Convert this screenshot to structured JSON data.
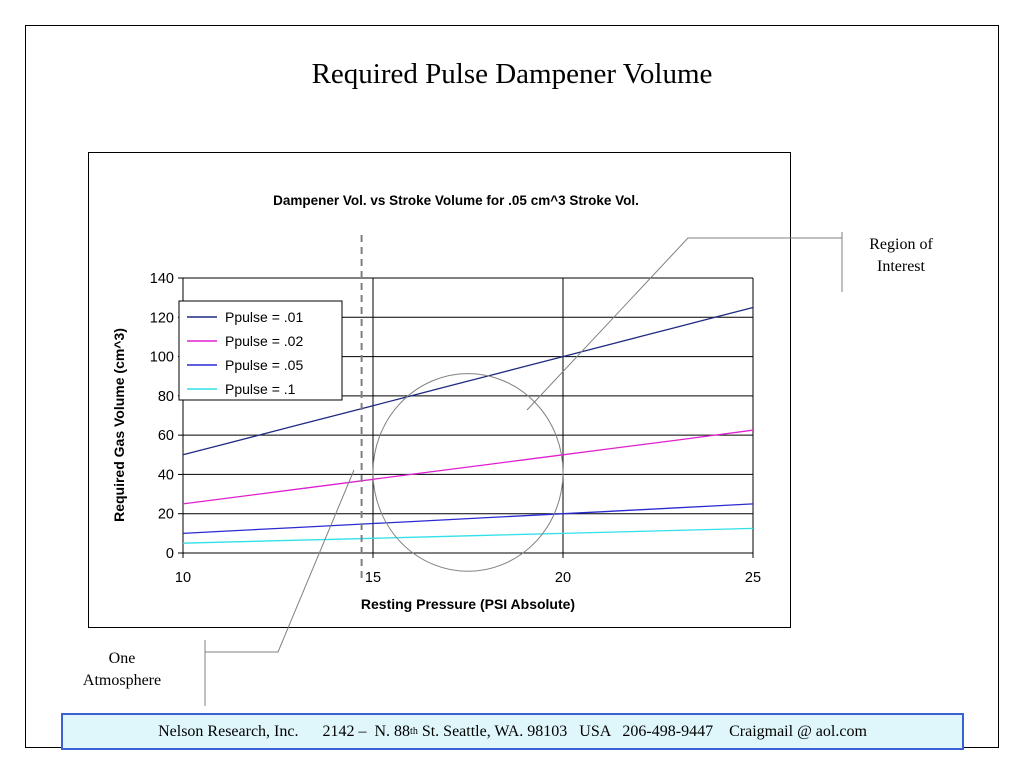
{
  "slide": {
    "title": "Required Pulse Dampener Volume",
    "callouts": {
      "region_line1": "Region of",
      "region_line2": "Interest",
      "atm_line1": "One",
      "atm_line2": "Atmosphere"
    },
    "footer": {
      "company": "Nelson Research, Inc.",
      "address_a": "2142 –  N. 88",
      "address_sup": "th",
      "address_b": " St. Seattle, WA. 98103   USA   206-498-9447    Craigmail @ aol.com"
    }
  },
  "colors": {
    "frame": "#000000",
    "grid": "#000000",
    "footer_bg": "#dff7fb",
    "footer_border": "#3a62d6",
    "callout_line": "#808080",
    "dashed_marker": "#808080"
  },
  "chart_data": {
    "type": "line",
    "title": "Dampener Vol. vs Stroke Volume for .05 cm^3 Stroke Vol.",
    "xlabel": "Resting Pressure (PSI Absolute)",
    "ylabel": "Required Gas Volume (cm^3)",
    "xlim": [
      10,
      25
    ],
    "ylim": [
      0,
      140
    ],
    "xticks": [
      10,
      15,
      20,
      25
    ],
    "yticks": [
      0,
      20,
      40,
      60,
      80,
      100,
      120,
      140
    ],
    "x": [
      10,
      11,
      12,
      13,
      14,
      15,
      16,
      17,
      18,
      19,
      20,
      21,
      22,
      23,
      24,
      25
    ],
    "series": [
      {
        "name": "Ppulse = .01",
        "color": "#1f2a80",
        "values": [
          50,
          55,
          60,
          65,
          70,
          75,
          80,
          85,
          90,
          95,
          100,
          105,
          110,
          115,
          120,
          125
        ]
      },
      {
        "name": "Ppulse = .02",
        "color": "#e020d0",
        "values": [
          25,
          27.5,
          30,
          32.5,
          35,
          37.5,
          40,
          42.5,
          45,
          47.5,
          50,
          52.5,
          55,
          57.5,
          60,
          62.5
        ]
      },
      {
        "name": "Ppulse = .05",
        "color": "#2a2ad0",
        "values": [
          10,
          11,
          12,
          13,
          14,
          15,
          16,
          17,
          18,
          19,
          20,
          21,
          22,
          23,
          24,
          25
        ]
      },
      {
        "name": "Ppulse = .1",
        "color": "#30e0e8",
        "values": [
          5,
          5.5,
          6,
          6.5,
          7,
          7.5,
          8,
          8.5,
          9,
          9.5,
          10,
          10.5,
          11,
          11.5,
          12,
          12.5
        ]
      }
    ],
    "annotations": [
      {
        "type": "dashed-vline",
        "x": 14.7,
        "label": "One Atmosphere"
      },
      {
        "type": "circle",
        "label": "Region of Interest",
        "center": [
          17.5,
          41
        ],
        "radius_x_units": 2.5
      }
    ],
    "grid": true,
    "legend": "top-left"
  }
}
